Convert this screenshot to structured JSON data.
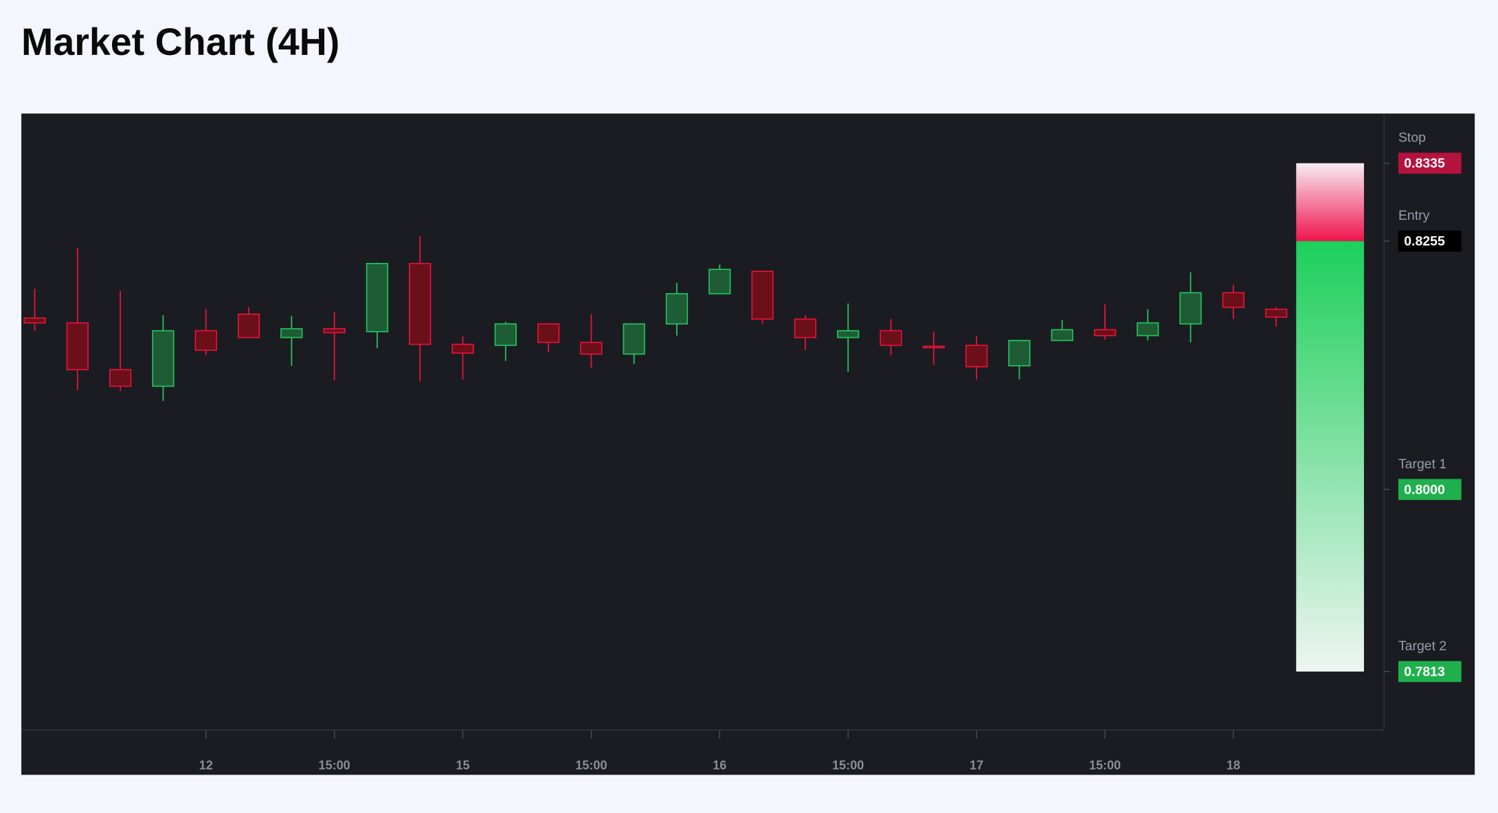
{
  "chart_data": {
    "type": "candlestick",
    "title": "Market Chart (4H)",
    "categories": [
      null,
      null,
      null,
      null,
      "12",
      null,
      null,
      "15:00",
      null,
      null,
      "15",
      null,
      null,
      "15:00",
      null,
      null,
      "16",
      null,
      null,
      "15:00",
      null,
      null,
      "17",
      null,
      null,
      "15:00",
      null,
      null,
      "18",
      null
    ],
    "open": [
      0.8176,
      0.8171,
      0.8123,
      0.8106,
      0.8163,
      0.818,
      0.8156,
      0.8165,
      0.8162,
      0.8232,
      0.8149,
      0.8148,
      0.817,
      0.8151,
      0.8139,
      0.817,
      0.8201,
      0.8224,
      0.8175,
      0.8156,
      0.8163,
      0.8147,
      0.8148,
      0.8127,
      0.8153,
      0.8164,
      0.8158,
      0.817,
      0.8202,
      0.8185
    ],
    "high": [
      0.8206,
      0.8248,
      0.8204,
      0.8179,
      0.8185,
      0.8187,
      0.8178,
      0.8182,
      0.8233,
      0.826,
      0.8157,
      0.8172,
      0.817,
      0.818,
      0.817,
      0.8212,
      0.8231,
      0.8224,
      0.8179,
      0.8191,
      0.8175,
      0.8162,
      0.8158,
      0.8153,
      0.8174,
      0.819,
      0.8185,
      0.8223,
      0.821,
      0.8187
    ],
    "low": [
      0.8163,
      0.8102,
      0.8101,
      0.8091,
      0.8138,
      0.8156,
      0.8127,
      0.8112,
      0.8145,
      0.8111,
      0.8113,
      0.8132,
      0.8141,
      0.8125,
      0.8129,
      0.8158,
      0.8201,
      0.817,
      0.8143,
      0.8121,
      0.8138,
      0.8128,
      0.8113,
      0.8113,
      0.8153,
      0.8154,
      0.8153,
      0.8151,
      0.8175,
      0.8167
    ],
    "close": [
      0.8171,
      0.8123,
      0.8106,
      0.8163,
      0.8143,
      0.8156,
      0.8165,
      0.8161,
      0.8232,
      0.8149,
      0.814,
      0.817,
      0.8151,
      0.8139,
      0.817,
      0.8201,
      0.8226,
      0.8175,
      0.8156,
      0.8163,
      0.8148,
      0.8146,
      0.8126,
      0.8153,
      0.8164,
      0.8158,
      0.8171,
      0.8202,
      0.8187,
      0.8177
    ],
    "up_color": "#22c55e",
    "down_color": "#e8123c",
    "ylim": [
      0.7753,
      0.8386
    ],
    "levels": [
      {
        "name": "Stop",
        "value": 0.8335,
        "label": "0.8335",
        "color": "#b5123e"
      },
      {
        "name": "Entry",
        "value": 0.8255,
        "label": "0.8255",
        "color": "#000000"
      },
      {
        "name": "Target 1",
        "value": 0.8,
        "label": "0.8000",
        "color": "#1fb04e"
      },
      {
        "name": "Target 2",
        "value": 0.7813,
        "label": "0.7813",
        "color": "#1fb04e"
      }
    ]
  }
}
